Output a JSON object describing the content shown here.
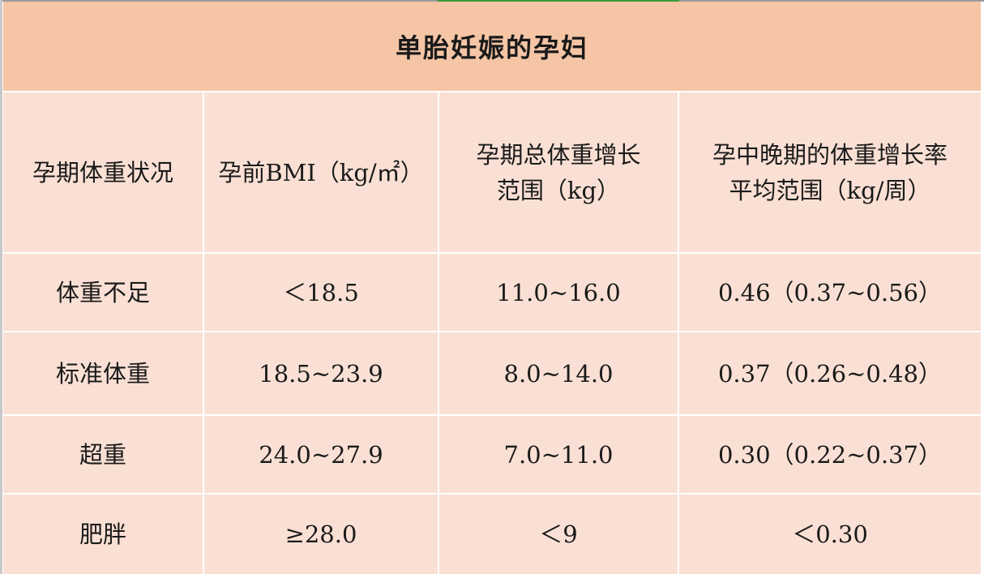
{
  "table": {
    "title": "单胎妊娠的孕妇",
    "headers": [
      "孕期体重状况",
      "孕前BMI（kg/㎡）",
      "孕期总体重增长\n范围（kg）",
      "孕中晚期的体重增长率\n平均范围（kg/周）"
    ],
    "rows": [
      [
        "体重不足",
        "＜18.5",
        "11.0~16.0",
        "0.46（0.37~0.56）"
      ],
      [
        "标准体重",
        "18.5~23.9",
        "8.0~14.0",
        "0.37（0.26~0.48）"
      ],
      [
        "超重",
        "24.0~27.9",
        "7.0~11.0",
        "0.30（0.22~0.37）"
      ],
      [
        "肥胖",
        "≥28.0",
        "＜9",
        "＜0.30"
      ]
    ]
  },
  "colors": {
    "title_bg": "#f5c5a6",
    "cell_bg": "#fae0d4",
    "grid": "#ffffff"
  }
}
